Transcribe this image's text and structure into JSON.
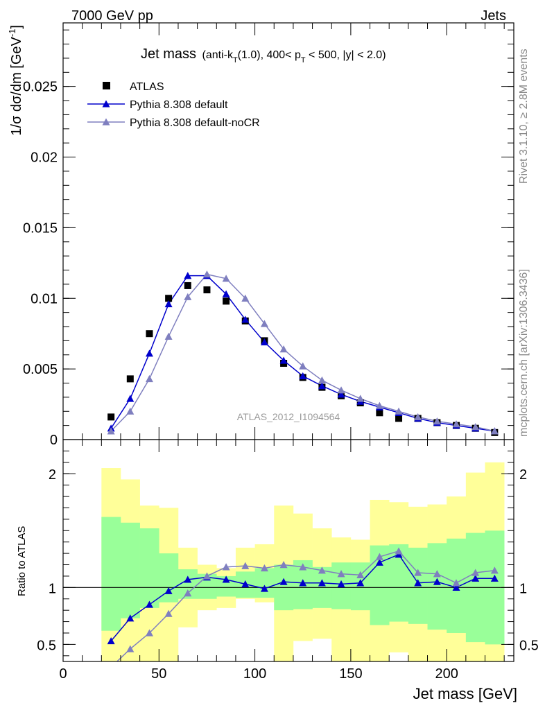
{
  "header": {
    "left": "7000 GeV pp",
    "right": "Jets"
  },
  "side_labels": {
    "rivet": "Rivet 3.1.10, ≥ 2.8M events",
    "mcplots": "mcplots.cern.ch [arXiv:1306.3436]"
  },
  "chart_data": [
    {
      "type": "scatter",
      "title_main": "Jet mass",
      "title_sub": "(anti-k_T(1.0), 400< p_T < 500, |y| < 2.0)",
      "ylabel": "1/σ dσ/dm [GeV⁻¹]",
      "xlim": [
        0,
        235
      ],
      "ylim": [
        0,
        0.0295
      ],
      "yticks": [
        0,
        0.005,
        0.01,
        0.015,
        0.02,
        0.025
      ],
      "ytick_labels": [
        "0",
        "0.005",
        "0.01",
        "0.015",
        "0.02",
        "0.025"
      ],
      "log_y": false,
      "watermark": "ATLAS_2012_I1094564",
      "legend_position": "top-left",
      "x": [
        25,
        35,
        45,
        55,
        65,
        75,
        85,
        95,
        105,
        115,
        125,
        135,
        145,
        155,
        165,
        175,
        185,
        195,
        205,
        215,
        225
      ],
      "series": [
        {
          "name": "ATLAS",
          "marker": "square",
          "color": "#000000",
          "values": [
            0.0016,
            0.0043,
            0.0075,
            0.01,
            0.0109,
            0.0106,
            0.0098,
            0.0084,
            0.007,
            0.0054,
            0.0044,
            0.0037,
            0.0031,
            0.0026,
            0.0019,
            0.0015,
            0.0015,
            0.0012,
            0.001,
            0.0008,
            0.0005
          ]
        },
        {
          "name": "Pythia 8.308 default",
          "marker": "triangle",
          "color": "#0000cc",
          "values": [
            0.0008,
            0.0029,
            0.0061,
            0.0096,
            0.0116,
            0.0116,
            0.0103,
            0.0085,
            0.0069,
            0.0056,
            0.0045,
            0.0038,
            0.0032,
            0.0027,
            0.0023,
            0.0019,
            0.0015,
            0.0012,
            0.001,
            0.0008,
            0.0006
          ]
        },
        {
          "name": "Pythia 8.308 default-noCR",
          "marker": "triangle",
          "color": "#7f7fbf",
          "values": [
            0.0006,
            0.002,
            0.0043,
            0.0073,
            0.0101,
            0.0117,
            0.0114,
            0.01,
            0.0082,
            0.0064,
            0.0052,
            0.0042,
            0.0035,
            0.0029,
            0.0024,
            0.002,
            0.0016,
            0.0013,
            0.0011,
            0.0009,
            0.0006
          ]
        }
      ]
    },
    {
      "type": "line",
      "ylabel": "Ratio to ATLAS",
      "xlabel": "Jet mass [GeV]",
      "xlim": [
        0,
        235
      ],
      "ylim": [
        0.35,
        2.3
      ],
      "xticks": [
        0,
        50,
        100,
        150,
        200
      ],
      "xtick_labels": [
        "0",
        "50",
        "100",
        "150",
        "200"
      ],
      "yticks": [
        0.5,
        1,
        2
      ],
      "ytick_labels": [
        "0.5",
        "1",
        "2"
      ],
      "reference_line": 1,
      "band_colors": {
        "outer": "#ffff99",
        "inner": "#99ff99"
      },
      "bins": [
        [
          20,
          30
        ],
        [
          30,
          40
        ],
        [
          40,
          50
        ],
        [
          50,
          60
        ],
        [
          60,
          70
        ],
        [
          70,
          80
        ],
        [
          80,
          90
        ],
        [
          90,
          100
        ],
        [
          100,
          110
        ],
        [
          110,
          120
        ],
        [
          120,
          130
        ],
        [
          130,
          140
        ],
        [
          140,
          150
        ],
        [
          150,
          160
        ],
        [
          160,
          170
        ],
        [
          170,
          180
        ],
        [
          180,
          190
        ],
        [
          190,
          200
        ],
        [
          200,
          210
        ],
        [
          210,
          220
        ],
        [
          220,
          230
        ]
      ],
      "bands": {
        "outer": [
          [
            0.35,
            2.05
          ],
          [
            0.35,
            1.95
          ],
          [
            0.35,
            1.72
          ],
          [
            0.35,
            1.7
          ],
          [
            0.65,
            1.35
          ],
          [
            0.8,
            1.2
          ],
          [
            0.82,
            1.17
          ],
          [
            0.9,
            1.35
          ],
          [
            0.87,
            1.38
          ],
          [
            0.35,
            1.72
          ],
          [
            0.53,
            1.65
          ],
          [
            0.55,
            1.52
          ],
          [
            0.35,
            1.44
          ],
          [
            0.35,
            1.42
          ],
          [
            0.35,
            1.77
          ],
          [
            0.43,
            1.75
          ],
          [
            0.35,
            1.71
          ],
          [
            0.35,
            1.73
          ],
          [
            0.35,
            1.8
          ],
          [
            0.35,
            2.01
          ],
          [
            0.35,
            2.1
          ]
        ],
        "inner": [
          [
            0.62,
            1.62
          ],
          [
            0.73,
            1.57
          ],
          [
            0.82,
            1.52
          ],
          [
            0.87,
            1.3
          ],
          [
            0.9,
            1.16
          ],
          [
            0.9,
            1.12
          ],
          [
            0.92,
            1.1
          ],
          [
            0.91,
            1.14
          ],
          [
            0.91,
            1.17
          ],
          [
            0.8,
            1.2
          ],
          [
            0.81,
            1.24
          ],
          [
            0.82,
            1.18
          ],
          [
            0.81,
            1.22
          ],
          [
            0.8,
            1.22
          ],
          [
            0.67,
            1.37
          ],
          [
            0.7,
            1.38
          ],
          [
            0.68,
            1.35
          ],
          [
            0.63,
            1.39
          ],
          [
            0.6,
            1.43
          ],
          [
            0.52,
            1.48
          ],
          [
            0.5,
            1.5
          ]
        ]
      },
      "x": [
        25,
        35,
        45,
        55,
        65,
        75,
        85,
        95,
        105,
        115,
        125,
        135,
        145,
        155,
        165,
        175,
        185,
        195,
        205,
        215,
        225
      ],
      "series": [
        {
          "name": "Pythia 8.308 default",
          "color": "#0000cc",
          "values": [
            0.53,
            0.73,
            0.85,
            0.97,
            1.07,
            1.09,
            1.07,
            1.03,
            0.99,
            1.05,
            1.04,
            1.04,
            1.03,
            1.04,
            1.22,
            1.29,
            1.04,
            1.05,
            1.0,
            1.08,
            1.08
          ]
        },
        {
          "name": "Pythia 8.308 default-noCR",
          "color": "#7f7fbf",
          "values": [
            0.3,
            0.46,
            0.6,
            0.77,
            0.95,
            1.1,
            1.18,
            1.19,
            1.17,
            1.2,
            1.18,
            1.15,
            1.12,
            1.11,
            1.27,
            1.32,
            1.13,
            1.12,
            1.04,
            1.13,
            1.15
          ]
        }
      ]
    }
  ]
}
